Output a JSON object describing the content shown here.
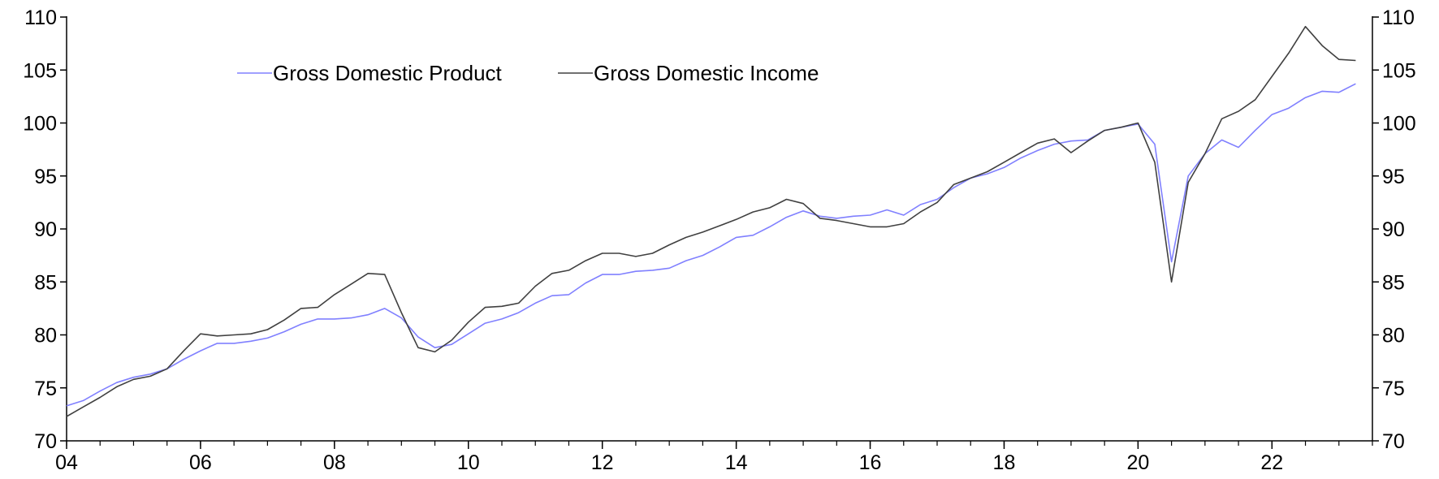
{
  "chart_data": {
    "type": "line",
    "title": "",
    "xlabel": "",
    "ylabel": "",
    "xlim": [
      2004,
      2023.5
    ],
    "ylim": [
      70,
      110
    ],
    "y_ticks": [
      70,
      75,
      80,
      85,
      90,
      95,
      100,
      105,
      110
    ],
    "x_ticks": [
      {
        "value": 2004,
        "label": "04"
      },
      {
        "value": 2006,
        "label": "06"
      },
      {
        "value": 2008,
        "label": "08"
      },
      {
        "value": 2010,
        "label": "10"
      },
      {
        "value": 2012,
        "label": "12"
      },
      {
        "value": 2014,
        "label": "14"
      },
      {
        "value": 2016,
        "label": "16"
      },
      {
        "value": 2018,
        "label": "18"
      },
      {
        "value": 2020,
        "label": "20"
      },
      {
        "value": 2022,
        "label": "22"
      }
    ],
    "grid": false,
    "right_axis": true,
    "legend_position": "top-left",
    "series": [
      {
        "name": "Gross Domestic Product",
        "color": "#8080ff",
        "x": [
          2004.0,
          2004.25,
          2004.5,
          2004.75,
          2005.0,
          2005.25,
          2005.5,
          2005.75,
          2006.0,
          2006.25,
          2006.5,
          2006.75,
          2007.0,
          2007.25,
          2007.5,
          2007.75,
          2008.0,
          2008.25,
          2008.5,
          2008.75,
          2009.0,
          2009.25,
          2009.5,
          2009.75,
          2010.0,
          2010.25,
          2010.5,
          2010.75,
          2011.0,
          2011.25,
          2011.5,
          2011.75,
          2012.0,
          2012.25,
          2012.5,
          2012.75,
          2013.0,
          2013.25,
          2013.5,
          2013.75,
          2014.0,
          2014.25,
          2014.5,
          2014.75,
          2015.0,
          2015.25,
          2015.5,
          2015.75,
          2016.0,
          2016.25,
          2016.5,
          2016.75,
          2017.0,
          2017.25,
          2017.5,
          2017.75,
          2018.0,
          2018.25,
          2018.5,
          2018.75,
          2019.0,
          2019.25,
          2019.5,
          2019.75,
          2020.0,
          2020.25,
          2020.5,
          2020.75,
          2021.0,
          2021.25,
          2021.5,
          2021.75,
          2022.0,
          2022.25,
          2022.5,
          2022.75,
          2023.0,
          2023.25
        ],
        "values": [
          73.3,
          73.8,
          74.7,
          75.5,
          76.0,
          76.3,
          76.8,
          77.7,
          78.5,
          79.2,
          79.2,
          79.4,
          79.7,
          80.3,
          81.0,
          81.5,
          81.5,
          81.6,
          81.9,
          82.5,
          81.6,
          79.8,
          78.8,
          79.1,
          80.1,
          81.1,
          81.5,
          82.1,
          83.0,
          83.7,
          83.8,
          84.9,
          85.7,
          85.7,
          86.0,
          86.1,
          86.3,
          87.0,
          87.5,
          88.3,
          89.2,
          89.4,
          90.2,
          91.1,
          91.7,
          91.2,
          91.0,
          91.2,
          91.3,
          91.8,
          91.3,
          92.3,
          92.8,
          93.9,
          94.8,
          95.2,
          95.8,
          96.7,
          97.4,
          98.0,
          98.3,
          98.4,
          99.3,
          99.6,
          99.9,
          98.0,
          86.9,
          95.0,
          97.1,
          98.4,
          97.7,
          99.3,
          100.8,
          101.4,
          102.4,
          103.0,
          102.9,
          103.7
        ]
      },
      {
        "name": "Gross Domestic Income",
        "color": "#404040",
        "x": [
          2004.0,
          2004.25,
          2004.5,
          2004.75,
          2005.0,
          2005.25,
          2005.5,
          2005.75,
          2006.0,
          2006.25,
          2006.5,
          2006.75,
          2007.0,
          2007.25,
          2007.5,
          2007.75,
          2008.0,
          2008.25,
          2008.5,
          2008.75,
          2009.0,
          2009.25,
          2009.5,
          2009.75,
          2010.0,
          2010.25,
          2010.5,
          2010.75,
          2011.0,
          2011.25,
          2011.5,
          2011.75,
          2012.0,
          2012.25,
          2012.5,
          2012.75,
          2013.0,
          2013.25,
          2013.5,
          2013.75,
          2014.0,
          2014.25,
          2014.5,
          2014.75,
          2015.0,
          2015.25,
          2015.5,
          2015.75,
          2016.0,
          2016.25,
          2016.5,
          2016.75,
          2017.0,
          2017.25,
          2017.5,
          2017.75,
          2018.0,
          2018.25,
          2018.5,
          2018.75,
          2019.0,
          2019.25,
          2019.5,
          2019.75,
          2020.0,
          2020.25,
          2020.5,
          2020.75,
          2021.0,
          2021.25,
          2021.5,
          2021.75,
          2022.0,
          2022.25,
          2022.5,
          2022.75,
          2023.0,
          2023.25
        ],
        "values": [
          72.3,
          73.2,
          74.1,
          75.1,
          75.8,
          76.1,
          76.8,
          78.5,
          80.1,
          79.9,
          80.0,
          80.1,
          80.5,
          81.4,
          82.5,
          82.6,
          83.8,
          84.8,
          85.8,
          85.7,
          82.1,
          78.8,
          78.4,
          79.5,
          81.2,
          82.6,
          82.7,
          83.0,
          84.6,
          85.8,
          86.1,
          87.0,
          87.7,
          87.7,
          87.4,
          87.7,
          88.5,
          89.2,
          89.7,
          90.3,
          90.9,
          91.6,
          92.0,
          92.8,
          92.4,
          91.0,
          90.8,
          90.5,
          90.2,
          90.2,
          90.5,
          91.6,
          92.5,
          94.2,
          94.8,
          95.4,
          96.3,
          97.2,
          98.1,
          98.5,
          97.2,
          98.3,
          99.3,
          99.6,
          100.0,
          96.3,
          85.0,
          94.4,
          97.1,
          100.4,
          101.1,
          102.2,
          104.4,
          106.6,
          109.1,
          107.3,
          106.0,
          105.9
        ]
      }
    ]
  }
}
